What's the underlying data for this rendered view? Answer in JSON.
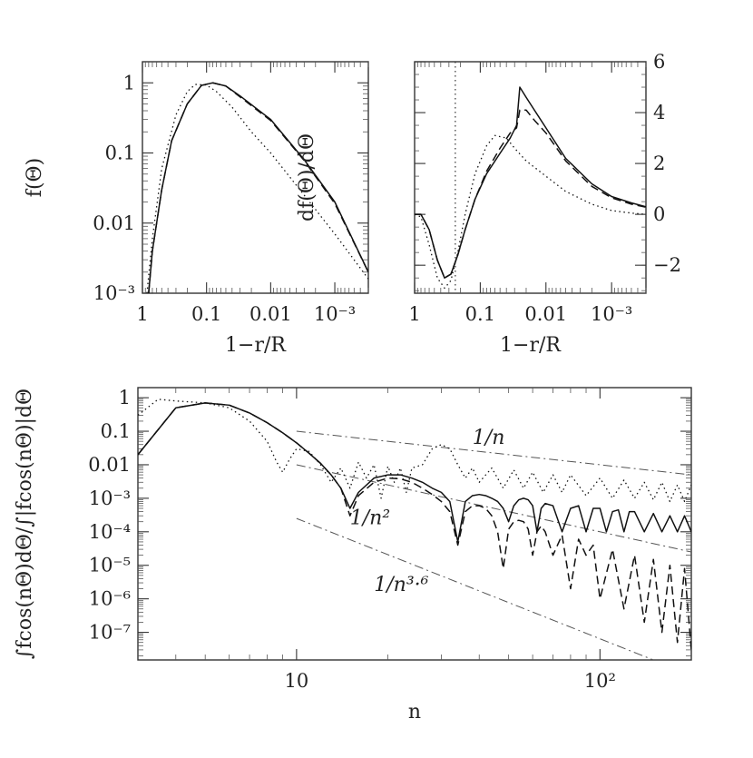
{
  "chart_data": [
    {
      "id": "top-left",
      "type": "line",
      "xscale": "log-reversed",
      "yscale": "log",
      "xlabel": "1−r/R",
      "ylabel": "f(Θ)",
      "xlim": [
        1,
        0.0003
      ],
      "ylim": [
        0.001,
        2
      ],
      "xticks": [
        {
          "value": 1,
          "label": "1"
        },
        {
          "value": 0.1,
          "label": "0.1"
        },
        {
          "value": 0.01,
          "label": "0.01"
        },
        {
          "value": 0.001,
          "label": "10⁻³"
        }
      ],
      "yticks": [
        {
          "value": 1,
          "label": "1"
        },
        {
          "value": 0.1,
          "label": "0.1"
        },
        {
          "value": 0.01,
          "label": "0.01"
        },
        {
          "value": 0.001,
          "label": "10⁻³"
        }
      ],
      "series": [
        {
          "name": "solid",
          "style": "solid",
          "x": [
            0.8,
            0.7,
            0.5,
            0.35,
            0.2,
            0.12,
            0.08,
            0.05,
            0.03,
            0.01,
            0.003,
            0.001,
            0.0003
          ],
          "y": [
            0.001,
            0.004,
            0.03,
            0.15,
            0.5,
            0.92,
            1.0,
            0.9,
            0.65,
            0.3,
            0.08,
            0.02,
            0.002
          ]
        },
        {
          "name": "dashed",
          "style": "dashed",
          "x": [
            0.8,
            0.7,
            0.5,
            0.35,
            0.2,
            0.12,
            0.08,
            0.05,
            0.03,
            0.01,
            0.003,
            0.001,
            0.0003
          ],
          "y": [
            0.001,
            0.004,
            0.03,
            0.15,
            0.5,
            0.92,
            1.0,
            0.9,
            0.63,
            0.29,
            0.078,
            0.019,
            0.002
          ]
        },
        {
          "name": "dotted",
          "style": "dotted",
          "x": [
            0.85,
            0.7,
            0.5,
            0.3,
            0.2,
            0.15,
            0.1,
            0.07,
            0.04,
            0.02,
            0.01,
            0.003,
            0.001,
            0.0003
          ],
          "y": [
            0.001,
            0.006,
            0.06,
            0.35,
            0.75,
            0.95,
            0.93,
            0.75,
            0.45,
            0.2,
            0.1,
            0.025,
            0.007,
            0.0016
          ]
        }
      ]
    },
    {
      "id": "top-right",
      "type": "line",
      "xscale": "log-reversed",
      "yscale": "linear",
      "xlabel": "1−r/R",
      "ylabel": "df(Θ)/dΘ",
      "xlim": [
        1,
        0.0003
      ],
      "ylim": [
        -3.1,
        6
      ],
      "vline": 0.24,
      "xticks": [
        {
          "value": 1,
          "label": "1"
        },
        {
          "value": 0.1,
          "label": "0.1"
        },
        {
          "value": 0.01,
          "label": "0.01"
        },
        {
          "value": 0.001,
          "label": "10⁻³"
        }
      ],
      "yticks": [
        {
          "value": 6,
          "label": "6"
        },
        {
          "value": 4,
          "label": "4"
        },
        {
          "value": 2,
          "label": "2"
        },
        {
          "value": 0,
          "label": "0"
        },
        {
          "value": -2,
          "label": "−2"
        }
      ],
      "series": [
        {
          "name": "solid",
          "style": "solid",
          "x": [
            1,
            0.8,
            0.6,
            0.45,
            0.35,
            0.28,
            0.22,
            0.17,
            0.12,
            0.08,
            0.05,
            0.035,
            0.028,
            0.025,
            0.02,
            0.015,
            0.01,
            0.005,
            0.002,
            0.001,
            0.0005,
            0.0003
          ],
          "y": [
            0,
            0,
            -0.6,
            -1.8,
            -2.5,
            -2.35,
            -1.6,
            -0.6,
            0.6,
            1.6,
            2.4,
            3.0,
            3.5,
            5.0,
            4.6,
            4.1,
            3.4,
            2.2,
            1.2,
            0.7,
            0.45,
            0.3
          ]
        },
        {
          "name": "dashed",
          "style": "dashed",
          "x": [
            1,
            0.8,
            0.6,
            0.45,
            0.35,
            0.28,
            0.22,
            0.17,
            0.12,
            0.08,
            0.05,
            0.035,
            0.028,
            0.025,
            0.02,
            0.015,
            0.01,
            0.005,
            0.002,
            0.001,
            0.0005,
            0.0003
          ],
          "y": [
            0,
            0,
            -0.6,
            -1.8,
            -2.5,
            -2.35,
            -1.6,
            -0.6,
            0.6,
            1.7,
            2.6,
            3.2,
            3.4,
            4.1,
            4.1,
            3.7,
            3.2,
            2.1,
            1.1,
            0.65,
            0.4,
            0.28
          ]
        },
        {
          "name": "dotted",
          "style": "dotted",
          "x": [
            1,
            0.8,
            0.6,
            0.45,
            0.35,
            0.28,
            0.22,
            0.17,
            0.12,
            0.08,
            0.06,
            0.04,
            0.03,
            0.02,
            0.01,
            0.005,
            0.002,
            0.001,
            0.0005,
            0.0003
          ],
          "y": [
            0,
            -0.1,
            -1.2,
            -2.5,
            -2.9,
            -2.6,
            -1.5,
            0.0,
            1.6,
            2.7,
            3.1,
            3.0,
            2.6,
            2.1,
            1.5,
            0.9,
            0.4,
            0.15,
            0.05,
            0.0
          ]
        }
      ]
    },
    {
      "id": "bottom",
      "type": "line",
      "xscale": "log",
      "yscale": "log",
      "xlabel": "n",
      "ylabel": "∫fcos(nΘ)dΘ/∫|fcos(nΘ)|dΘ",
      "xlim": [
        3,
        200
      ],
      "ylim": [
        1.5e-08,
        2
      ],
      "xticks": [
        {
          "value": 10,
          "label": "10"
        },
        {
          "value": 100,
          "label": "10²"
        }
      ],
      "yticks": [
        {
          "value": 1,
          "label": "1"
        },
        {
          "value": 0.1,
          "label": "0.1"
        },
        {
          "value": 0.01,
          "label": "0.01"
        },
        {
          "value": 0.001,
          "label": "10⁻³"
        },
        {
          "value": 0.0001,
          "label": "10⁻⁴"
        },
        {
          "value": 1e-05,
          "label": "10⁻⁵"
        },
        {
          "value": 1e-06,
          "label": "10⁻⁶"
        },
        {
          "value": 1e-07,
          "label": "10⁻⁷"
        }
      ],
      "reference_lines": [
        {
          "label": "1/n",
          "x": [
            10,
            200
          ],
          "y": [
            0.1,
            0.005
          ],
          "label_at": [
            38,
            0.042
          ]
        },
        {
          "label": "1/n²",
          "x": [
            10,
            200
          ],
          "y": [
            0.01,
            2.5e-05
          ],
          "label_at": [
            15,
            0.00017
          ]
        },
        {
          "label": "1/n³·⁶",
          "x": [
            10,
            150
          ],
          "y": [
            0.00025,
            1.5e-08
          ],
          "label_at": [
            18,
            1.7e-06
          ]
        }
      ],
      "series": [
        {
          "name": "solid",
          "style": "solid",
          "x": [
            3,
            4,
            5,
            6,
            7,
            8,
            9,
            10,
            11,
            12,
            13,
            14,
            15,
            16,
            18,
            20,
            22,
            24,
            26,
            28,
            30,
            32,
            34,
            36,
            38,
            40,
            42,
            44,
            46,
            48,
            50,
            52,
            54,
            56,
            58,
            60,
            62,
            64,
            66,
            70,
            75,
            80,
            85,
            90,
            95,
            100,
            105,
            110,
            115,
            120,
            125,
            130,
            140,
            150,
            160,
            170,
            180,
            190,
            200
          ],
          "y": [
            0.02,
            0.5,
            0.7,
            0.6,
            0.35,
            0.18,
            0.09,
            0.045,
            0.022,
            0.011,
            0.005,
            0.002,
            0.0005,
            0.0015,
            0.004,
            0.005,
            0.005,
            0.004,
            0.003,
            0.002,
            0.0015,
            0.0008,
            5e-05,
            0.0008,
            0.0012,
            0.0013,
            0.0012,
            0.001,
            0.0008,
            0.0005,
            0.0002,
            0.0006,
            0.0009,
            0.001,
            0.0009,
            0.0006,
            0.0001,
            0.0005,
            0.0007,
            0.0006,
            0.0001,
            0.0005,
            0.0006,
            0.0001,
            0.0005,
            0.0005,
            0.0001,
            0.0004,
            0.00045,
            0.0001,
            0.0004,
            0.0004,
            0.0001,
            0.00035,
            0.0001,
            0.0003,
            0.0001,
            0.0003,
            0.0001
          ]
        },
        {
          "name": "dashed",
          "style": "dashed",
          "x": [
            3,
            4,
            5,
            6,
            7,
            8,
            9,
            10,
            11,
            12,
            13,
            14,
            15,
            16,
            18,
            20,
            22,
            24,
            26,
            28,
            30,
            32,
            34,
            36,
            38,
            40,
            42,
            44,
            46,
            48,
            50,
            52,
            54,
            56,
            58,
            60,
            62,
            64,
            66,
            70,
            75,
            80,
            85,
            90,
            95,
            100,
            110,
            120,
            130,
            140,
            150,
            160,
            170,
            180,
            190,
            200
          ],
          "y": [
            0.02,
            0.5,
            0.7,
            0.6,
            0.35,
            0.18,
            0.09,
            0.045,
            0.022,
            0.011,
            0.005,
            0.002,
            0.0003,
            0.0012,
            0.003,
            0.004,
            0.0038,
            0.003,
            0.002,
            0.0013,
            0.0008,
            0.0004,
            4e-05,
            0.0004,
            0.0006,
            0.0006,
            0.0005,
            0.0003,
            0.0001,
            8e-06,
            0.00012,
            0.0002,
            0.00022,
            0.0002,
            0.00012,
            2e-05,
            0.0001,
            0.00015,
            0.0001,
            2e-05,
            8e-05,
            2e-06,
            6e-05,
            2e-05,
            4e-05,
            1e-06,
            3e-05,
            5e-07,
            2e-05,
            2e-07,
            1.5e-05,
            1e-07,
            1e-05,
            5e-08,
            8e-06,
            3e-08
          ]
        },
        {
          "name": "dotted",
          "style": "dotted",
          "x": [
            3,
            3.5,
            4,
            5,
            6,
            7,
            8,
            8.6,
            9,
            9.5,
            10,
            11,
            12,
            13,
            14,
            15,
            16,
            17,
            18,
            19,
            20,
            21,
            22,
            23,
            24,
            26,
            28,
            30,
            32,
            34,
            36,
            38,
            40,
            44,
            48,
            52,
            56,
            60,
            65,
            70,
            75,
            80,
            90,
            100,
            110,
            120,
            130,
            140,
            150,
            160,
            170,
            180,
            190,
            200
          ],
          "y": [
            0.3,
            0.9,
            0.8,
            0.7,
            0.5,
            0.2,
            0.05,
            0.012,
            0.006,
            0.015,
            0.03,
            0.025,
            0.01,
            0.003,
            0.008,
            0.002,
            0.012,
            0.004,
            0.01,
            0.001,
            0.009,
            0.003,
            0.008,
            0.0015,
            0.008,
            0.01,
            0.03,
            0.04,
            0.03,
            0.01,
            0.004,
            0.008,
            0.003,
            0.008,
            0.002,
            0.007,
            0.002,
            0.006,
            0.0015,
            0.005,
            0.0015,
            0.005,
            0.0012,
            0.004,
            0.001,
            0.0035,
            0.001,
            0.003,
            0.0009,
            0.003,
            0.0008,
            0.0025,
            0.0008,
            0.0025
          ]
        }
      ]
    }
  ]
}
